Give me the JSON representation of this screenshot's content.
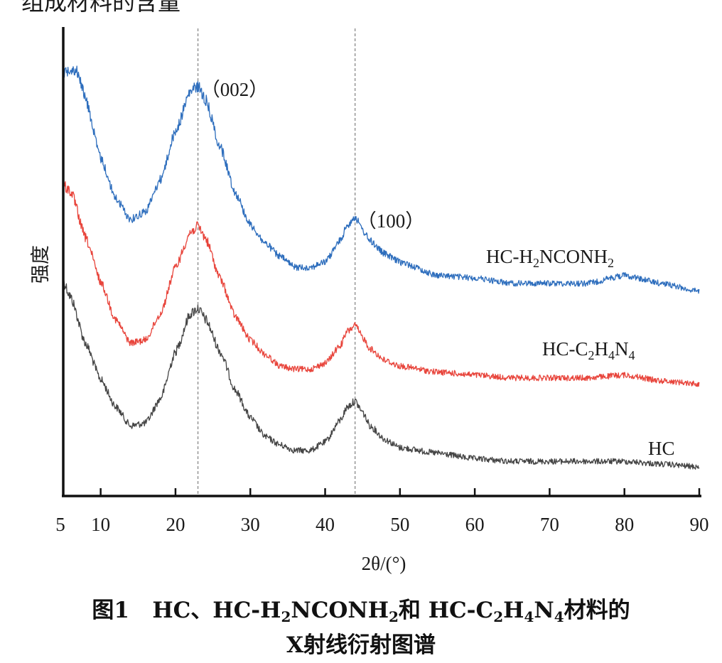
{
  "top_fragment": "组成材料的含量",
  "chart_data": {
    "type": "line",
    "xlabel": "2θ/(°)",
    "ylabel": "强度",
    "xlim": [
      5,
      90
    ],
    "xticks": [
      5,
      10,
      20,
      30,
      40,
      50,
      60,
      70,
      80,
      90
    ],
    "yticks": [],
    "reference_lines": [
      {
        "x": 23,
        "label": "（002）"
      },
      {
        "x": 44,
        "label": "（100）"
      }
    ],
    "series": [
      {
        "name": "HC-H2NCONH2",
        "color": "#2e6ebd",
        "x": [
          5,
          6,
          7,
          8,
          10,
          12,
          14,
          16,
          18,
          20,
          22,
          23,
          24,
          26,
          28,
          30,
          32,
          34,
          36,
          38,
          40,
          42,
          43,
          44,
          45,
          46,
          48,
          50,
          55,
          60,
          65,
          70,
          75,
          80,
          85,
          90
        ],
        "y": [
          82,
          84,
          82,
          72,
          50,
          35,
          27,
          30,
          42,
          60,
          75,
          77,
          72,
          54,
          37,
          25,
          18,
          13,
          9,
          9,
          11,
          19,
          25,
          28,
          23,
          19,
          14,
          11,
          6,
          5,
          3,
          3,
          3,
          6,
          3,
          0
        ]
      },
      {
        "name": "HC-C2H4N4",
        "color": "#e8453c",
        "x": [
          5,
          6,
          8,
          10,
          12,
          14,
          16,
          18,
          20,
          22,
          23,
          24,
          26,
          28,
          30,
          32,
          34,
          36,
          38,
          40,
          42,
          43,
          44,
          45,
          46,
          48,
          50,
          55,
          60,
          65,
          70,
          75,
          80,
          85,
          90
        ],
        "y": [
          68,
          66,
          50,
          35,
          22,
          14,
          15,
          24,
          40,
          52,
          54,
          50,
          36,
          23,
          15,
          10,
          6,
          5,
          5,
          7,
          13,
          18,
          20,
          16,
          12,
          8,
          6,
          4,
          3,
          2,
          2,
          2,
          3,
          1,
          0
        ]
      },
      {
        "name": "HC",
        "color": "#454545",
        "x": [
          5,
          6,
          8,
          10,
          12,
          14,
          16,
          18,
          20,
          22,
          23,
          24,
          26,
          28,
          30,
          32,
          34,
          36,
          38,
          40,
          42,
          43,
          44,
          45,
          46,
          48,
          50,
          55,
          60,
          65,
          70,
          75,
          80,
          85,
          90
        ],
        "y": [
          68,
          62,
          45,
          32,
          22,
          15,
          16,
          25,
          42,
          56,
          58,
          54,
          42,
          28,
          18,
          11,
          8,
          6,
          6,
          9,
          17,
          22,
          24,
          20,
          15,
          10,
          7,
          5,
          3,
          2,
          2,
          2,
          2,
          1,
          0
        ]
      }
    ],
    "series_labels": [
      {
        "series": "HC-H2NCONH2",
        "main": "HC-H",
        "parts": [
          [
            "HC-H",
            "2",
            "NCONH",
            "2"
          ]
        ]
      },
      {
        "series": "HC-C2H4N4"
      },
      {
        "series": "HC"
      }
    ]
  },
  "caption": {
    "line1_prefix": "图1",
    "line1_hc": "HC、HC-H",
    "line1_sub1": "2",
    "line1_mid": "NCONH",
    "line1_sub2": "2",
    "line1_and": "和 HC-C",
    "line1_sub3": "2",
    "line1_h": "H",
    "line1_sub4": "4",
    "line1_n": "N",
    "line1_sub5": "4",
    "line1_suffix": "材料的",
    "line2": "X射线衍射图谱"
  },
  "labels": {
    "hc_h2nconh2": [
      "HC-H",
      "2",
      "NCONH",
      "2"
    ],
    "hc_c2h4n4": [
      "HC-C",
      "2",
      "H",
      "4",
      "N",
      "4"
    ],
    "hc": "HC"
  }
}
